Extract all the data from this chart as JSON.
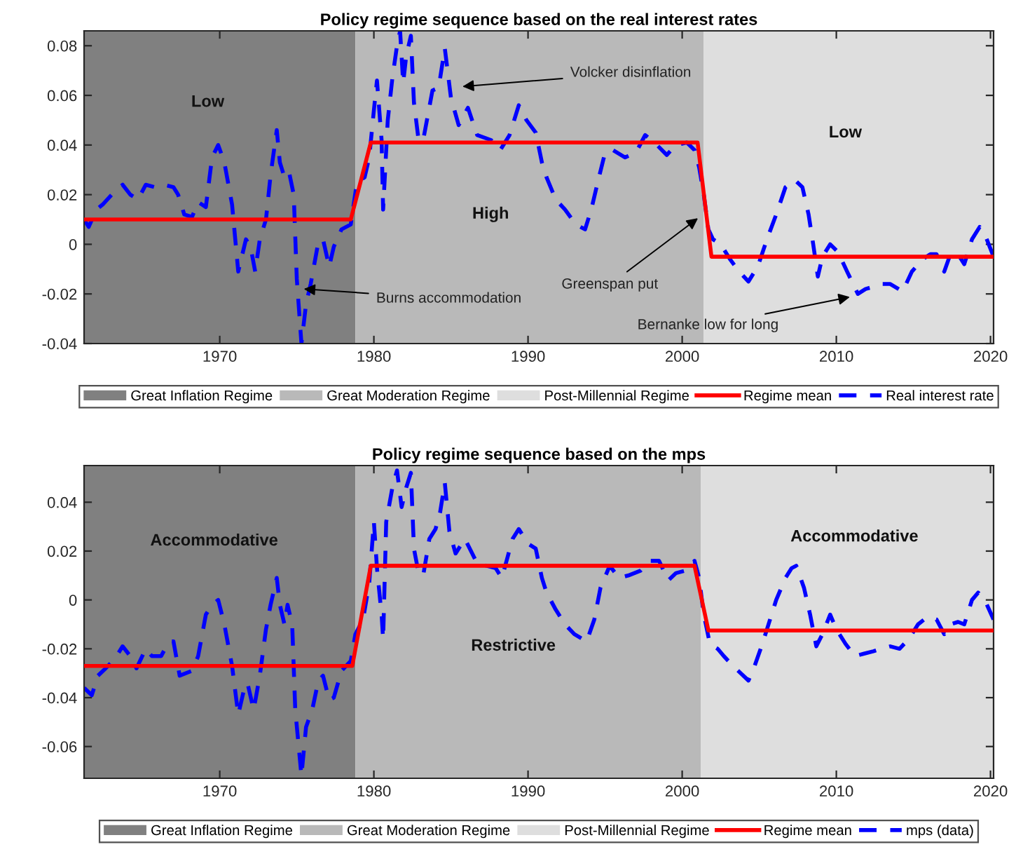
{
  "chart_data": [
    {
      "type": "line",
      "title": "Policy regime sequence based on the real interest rates",
      "xlim": [
        1961.2,
        2020.2
      ],
      "ylim": [
        -0.04,
        0.086
      ],
      "xticks": [
        1970,
        1980,
        1990,
        2000,
        2010,
        2020
      ],
      "yticks": [
        -0.04,
        -0.02,
        0,
        0.02,
        0.04,
        0.06,
        0.08
      ],
      "bands": [
        {
          "axis": "x",
          "from": 1961.2,
          "to": 1978.8,
          "label": "Great Inflation Regime",
          "color": "#808080"
        },
        {
          "axis": "x",
          "from": 1978.8,
          "to": 2001.4,
          "label": "Great Moderation Regime",
          "color": "#b9b9b9"
        },
        {
          "axis": "x",
          "from": 2001.4,
          "to": 2020.2,
          "label": "Post-Millennial Regime",
          "color": "#dedede"
        }
      ],
      "series": [
        {
          "name": "Regime mean",
          "color": "#ff0000",
          "line_style": "solid",
          "x": [
            1961.2,
            1978.5,
            1979.8,
            2001.0,
            2001.9,
            2020.2
          ],
          "values": [
            0.01,
            0.01,
            0.041,
            0.041,
            -0.005,
            -0.005
          ]
        },
        {
          "name": "Real interest rate",
          "color": "#0000ff",
          "line_style": "dashed",
          "x": [
            1961.2,
            1961.5,
            1962.0,
            1962.4,
            1963.0,
            1963.7,
            1964.2,
            1964.7,
            1965.2,
            1965.8,
            1966.4,
            1967.0,
            1967.3,
            1967.7,
            1968.2,
            1968.6,
            1969.1,
            1969.5,
            1969.9,
            1970.3,
            1970.8,
            1971.2,
            1971.7,
            1972.0,
            1972.3,
            1972.6,
            1973.0,
            1973.3,
            1973.7,
            1973.9,
            1974.2,
            1974.5,
            1974.8,
            1975.0,
            1975.3,
            1975.6,
            1975.9,
            1976.4,
            1976.7,
            1977.1,
            1977.4,
            1977.9,
            1978.5,
            1978.9,
            1979.4,
            1979.7,
            1980.0,
            1980.2,
            1980.5,
            1980.6,
            1980.9,
            1981.2,
            1981.5,
            1981.7,
            1981.9,
            1982.1,
            1982.4,
            1982.6,
            1982.9,
            1983.2,
            1983.5,
            1983.8,
            1984.2,
            1984.6,
            1985.0,
            1985.5,
            1986.1,
            1986.7,
            1987.6,
            1988.2,
            1988.8,
            1989.4,
            1989.9,
            1990.5,
            1990.9,
            1991.2,
            1991.8,
            1992.4,
            1993.1,
            1993.7,
            1994.1,
            1994.6,
            1995.0,
            1995.5,
            1996.3,
            1997.0,
            1997.6,
            1998.2,
            1999.0,
            1999.6,
            2000.3,
            2000.8,
            2001.1,
            2001.4,
            2001.7,
            2002.0,
            2002.5,
            2003.1,
            2003.7,
            2004.3,
            2004.9,
            2005.5,
            2006.1,
            2006.7,
            2007.3,
            2007.8,
            2008.2,
            2008.5,
            2008.8,
            2009.1,
            2009.6,
            2010.1,
            2010.7,
            2011.4,
            2011.9,
            2012.5,
            2012.9,
            2013.5,
            2014.3,
            2014.9,
            2015.6,
            2016.1,
            2016.5,
            2017.0,
            2017.4,
            2017.9,
            2018.3,
            2018.8,
            2019.3,
            2019.7,
            2020.2
          ],
          "values": [
            0.01,
            0.007,
            0.014,
            0.016,
            0.02,
            0.024,
            0.02,
            0.018,
            0.024,
            0.023,
            0.024,
            0.023,
            0.02,
            0.012,
            0.011,
            0.017,
            0.015,
            0.035,
            0.04,
            0.033,
            0.016,
            -0.011,
            0.002,
            -0.001,
            -0.011,
            0.002,
            0.01,
            0.028,
            0.046,
            0.033,
            0.027,
            0.029,
            0.02,
            -0.014,
            -0.04,
            -0.024,
            -0.016,
            0.001,
            0.002,
            -0.009,
            -0.001,
            0.006,
            0.008,
            0.025,
            0.027,
            0.035,
            0.054,
            0.066,
            0.042,
            0.014,
            0.05,
            0.067,
            0.08,
            0.086,
            0.065,
            0.076,
            0.084,
            0.057,
            0.042,
            0.042,
            0.052,
            0.062,
            0.063,
            0.079,
            0.059,
            0.048,
            0.055,
            0.044,
            0.042,
            0.038,
            0.044,
            0.056,
            0.05,
            0.045,
            0.033,
            0.027,
            0.018,
            0.014,
            0.008,
            0.006,
            0.014,
            0.027,
            0.037,
            0.038,
            0.035,
            0.037,
            0.044,
            0.041,
            0.036,
            0.04,
            0.041,
            0.038,
            0.031,
            0.02,
            0.006,
            0.002,
            0.0,
            -0.006,
            -0.011,
            -0.015,
            -0.009,
            0.002,
            0.012,
            0.023,
            0.026,
            0.023,
            0.012,
            0.0,
            -0.013,
            -0.005,
            0.0,
            -0.003,
            -0.011,
            -0.02,
            -0.018,
            -0.017,
            -0.016,
            -0.016,
            -0.019,
            -0.011,
            -0.006,
            -0.004,
            -0.004,
            -0.011,
            -0.004,
            -0.004,
            -0.008,
            0.002,
            0.007,
            0.003,
            -0.005
          ]
        }
      ],
      "annotations": [
        "Low",
        "High",
        "Low",
        "Volcker disinflation",
        {
          "text": "Burns accommodation",
          "x": 1975.45,
          "y": -0.018
        },
        "Greenspan put",
        "Bernanke low for long"
      ],
      "legend": "bottom"
    },
    {
      "type": "line",
      "title": "Policy regime sequence based on the mps",
      "xlim": [
        1961.2,
        2020.2
      ],
      "ylim": [
        -0.073,
        0.055
      ],
      "xticks": [
        1970,
        1980,
        1990,
        2000,
        2010,
        2020
      ],
      "yticks": [
        -0.06,
        -0.04,
        -0.02,
        0,
        0.02,
        0.04
      ],
      "bands": [
        {
          "axis": "x",
          "from": 1961.2,
          "to": 1978.8,
          "label": "Great Inflation Regime",
          "color": "#808080"
        },
        {
          "axis": "x",
          "from": 1978.8,
          "to": 2001.2,
          "label": "Great Moderation Regime",
          "color": "#b9b9b9"
        },
        {
          "axis": "x",
          "from": 2001.2,
          "to": 2020.2,
          "label": "Post-Millennial Regime",
          "color": "#dedede"
        }
      ],
      "series": [
        {
          "name": "Regime mean",
          "color": "#ff0000",
          "line_style": "solid",
          "x": [
            1961.2,
            1978.6,
            1979.8,
            2000.8,
            2001.7,
            2020.2
          ],
          "values": [
            -0.027,
            -0.027,
            0.014,
            0.014,
            -0.0125,
            -0.0125
          ]
        },
        {
          "name": "mps (data)",
          "color": "#0000ff",
          "line_style": "dashed",
          "x": [
            1961.2,
            1961.7,
            1962.1,
            1962.6,
            1963.2,
            1963.7,
            1964.2,
            1964.6,
            1965.2,
            1965.6,
            1966.2,
            1966.7,
            1967.0,
            1967.4,
            1968.2,
            1968.6,
            1969.1,
            1969.5,
            1969.9,
            1970.3,
            1970.8,
            1971.2,
            1971.6,
            1971.8,
            1972.2,
            1972.6,
            1973.0,
            1973.3,
            1973.7,
            1973.9,
            1974.2,
            1974.4,
            1974.7,
            1974.9,
            1975.3,
            1975.6,
            1976.0,
            1976.4,
            1976.7,
            1977.1,
            1977.4,
            1977.9,
            1978.5,
            1978.8,
            1979.3,
            1979.7,
            1980.0,
            1980.2,
            1980.5,
            1980.6,
            1980.8,
            1981.2,
            1981.5,
            1981.8,
            1982.1,
            1982.4,
            1982.6,
            1982.9,
            1983.2,
            1983.6,
            1984.0,
            1984.3,
            1984.6,
            1984.9,
            1985.3,
            1985.9,
            1986.7,
            1987.3,
            1987.9,
            1988.3,
            1989.0,
            1989.4,
            1990.0,
            1990.5,
            1990.9,
            1991.2,
            1991.8,
            1992.4,
            1993.0,
            1993.8,
            1994.3,
            1994.7,
            1995.3,
            1995.9,
            1996.5,
            1997.3,
            1997.9,
            1998.5,
            1999.1,
            1999.6,
            2000.2,
            2000.8,
            2001.1,
            2001.4,
            2001.8,
            2002.3,
            2002.7,
            2003.3,
            2003.8,
            2004.3,
            2004.7,
            2005.2,
            2005.6,
            2006.1,
            2006.7,
            2007.1,
            2007.4,
            2007.9,
            2008.3,
            2008.7,
            2009.1,
            2009.6,
            2010.0,
            2010.6,
            2011.2,
            2011.8,
            2012.4,
            2012.9,
            2013.5,
            2014.1,
            2014.7,
            2015.3,
            2015.9,
            2016.5,
            2017.0,
            2017.4,
            2017.9,
            2018.3,
            2018.8,
            2019.2,
            2019.7,
            2020.2
          ],
          "values": [
            -0.036,
            -0.039,
            -0.031,
            -0.028,
            -0.024,
            -0.019,
            -0.023,
            -0.028,
            -0.02,
            -0.023,
            -0.023,
            -0.017,
            -0.017,
            -0.031,
            -0.029,
            -0.023,
            -0.006,
            -0.002,
            0.0,
            -0.01,
            -0.027,
            -0.047,
            -0.036,
            -0.034,
            -0.045,
            -0.031,
            -0.012,
            -0.002,
            0.009,
            -0.002,
            -0.01,
            -0.002,
            -0.01,
            -0.045,
            -0.072,
            -0.052,
            -0.045,
            -0.033,
            -0.031,
            -0.041,
            -0.04,
            -0.029,
            -0.025,
            -0.014,
            -0.008,
            0.007,
            0.032,
            0.013,
            -0.006,
            -0.016,
            0.032,
            0.046,
            0.053,
            0.038,
            0.046,
            0.052,
            0.021,
            0.011,
            0.01,
            0.025,
            0.029,
            0.036,
            0.048,
            0.028,
            0.019,
            0.025,
            0.015,
            0.014,
            0.013,
            0.009,
            0.025,
            0.029,
            0.023,
            0.021,
            0.009,
            0.003,
            -0.004,
            -0.01,
            -0.014,
            -0.017,
            -0.008,
            0.005,
            0.014,
            0.009,
            0.01,
            0.012,
            0.016,
            0.016,
            0.008,
            0.011,
            0.012,
            0.016,
            0.009,
            -0.006,
            -0.018,
            -0.02,
            -0.023,
            -0.027,
            -0.03,
            -0.033,
            -0.027,
            -0.018,
            -0.01,
            0.0,
            0.009,
            0.013,
            0.014,
            0.005,
            -0.006,
            -0.019,
            -0.014,
            -0.006,
            -0.012,
            -0.018,
            -0.023,
            -0.022,
            -0.021,
            -0.02,
            -0.019,
            -0.02,
            -0.016,
            -0.01,
            -0.007,
            -0.008,
            -0.014,
            -0.01,
            -0.009,
            -0.01,
            0.0,
            0.003,
            -0.001,
            -0.008
          ]
        }
      ],
      "annotations": [
        "Accommodative",
        "Restrictive",
        "Accommodative"
      ],
      "legend": "bottom"
    }
  ]
}
